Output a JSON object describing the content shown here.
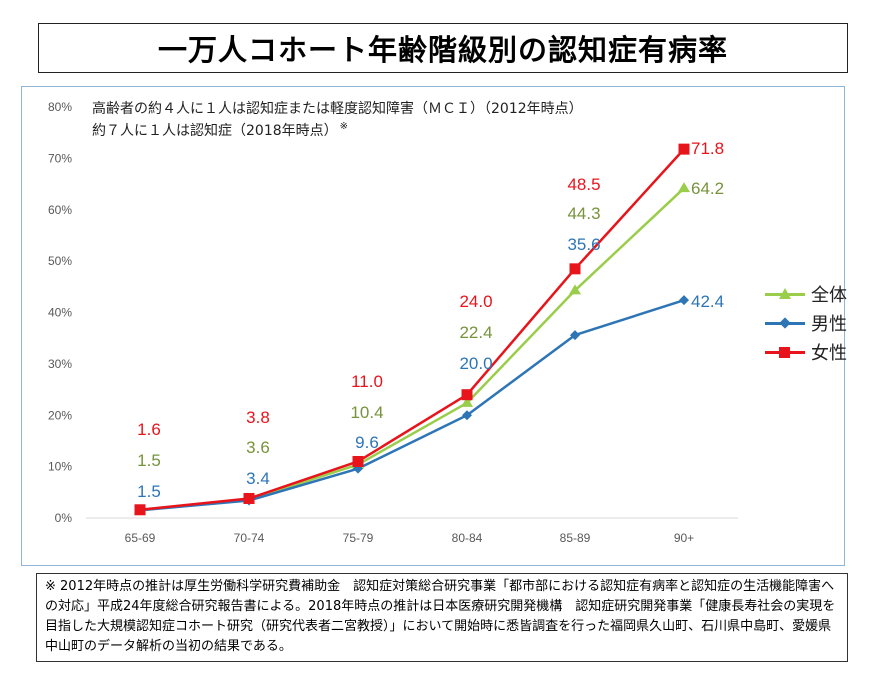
{
  "page": {
    "title": "一万人コホート年齢階級別の認知症有病率",
    "subtitle_line1": "高齢者の約４人に１人は認知症または軽度認知障害（ＭＣＩ）（2012年時点）",
    "subtitle_line2": "約７人に１人は認知症（2018年時点）",
    "subtitle_mark": "※",
    "footnote": "※ 2012年時点の推計は厚生労働科学研究費補助金　認知症対策総合研究事業「都市部における認知症有病率と認知症の生活機能障害への対応」平成24年度総合研究報告書による。2018年時点の推計は日本医療研究開発機構　認知症研究開発事業「健康長寿社会の実現を目指した大規模認知症コホート研究（研究代表者二宮教授）」において開始時に悉皆調査を行った福岡県久山町、石川県中島町、愛媛県中山町のデータ解析の当初の結果である。"
  },
  "chart_data": {
    "type": "line",
    "categories": [
      "65-69",
      "70-74",
      "75-79",
      "80-84",
      "85-89",
      "90+"
    ],
    "ylim": [
      0,
      80
    ],
    "yticks": [
      0,
      10,
      20,
      30,
      40,
      50,
      60,
      70,
      80
    ],
    "ytick_labels": [
      "0%",
      "10%",
      "20%",
      "30%",
      "40%",
      "50%",
      "60%",
      "70%",
      "80%"
    ],
    "grid": false,
    "legend_position": "right",
    "series": [
      {
        "name": "全体",
        "values": [
          1.5,
          3.6,
          10.4,
          22.4,
          44.3,
          64.2
        ],
        "labels": [
          "1.5",
          "3.6",
          "10.4",
          "22.4",
          "44.3",
          "64.2"
        ],
        "color": "#9acd4a",
        "label_color": "#77933c",
        "marker": "triangle"
      },
      {
        "name": "男性",
        "values": [
          1.5,
          3.4,
          9.6,
          20.0,
          35.6,
          42.4
        ],
        "labels": [
          "1.5",
          "3.4",
          "9.6",
          "20.0",
          "35.6",
          "42.4"
        ],
        "color": "#2e75b6",
        "label_color": "#2e75b6",
        "marker": "diamond"
      },
      {
        "name": "女性",
        "values": [
          1.6,
          3.8,
          11.0,
          24.0,
          48.5,
          71.8
        ],
        "labels": [
          "1.6",
          "3.8",
          "11.0",
          "24.0",
          "48.5",
          "71.8"
        ],
        "color": "#e8141c",
        "label_color": "#e8141c",
        "marker": "square"
      }
    ]
  }
}
